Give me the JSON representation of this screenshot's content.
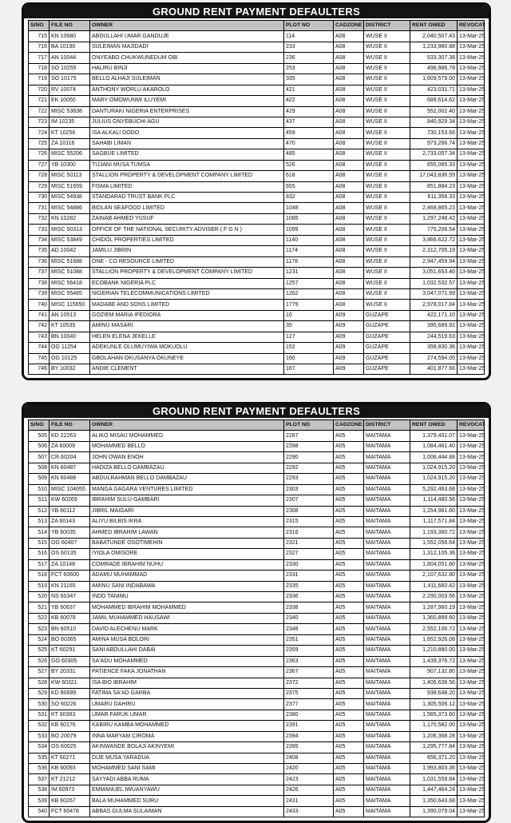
{
  "page": {
    "background": "#f1f1ef",
    "title_bar_color": "#141414",
    "title_text_color": "#ffffff",
    "header_row_color": "#c2c2c2",
    "grid_border_color": "#000000"
  },
  "tables": [
    {
      "title": "GROUND RENT PAYMENT DEFAULTERS",
      "columns": [
        "S/NO",
        "FILE NO",
        "OWNER",
        "PLOT NO",
        "CADZONE",
        "DISTRICT",
        "RENT OWED",
        "REVOCATION DATE"
      ],
      "rows": [
        [
          "715",
          "KN 10680",
          "ABDULLAHI UMAR GANDUJE",
          "114",
          "A08",
          "WUSE II",
          "2,040,507.43",
          "13-Mar-25"
        ],
        [
          "716",
          "BA 10190",
          "SULEIMAN  MAJIDADI",
          "233",
          "A08",
          "WUSE II",
          "1,233,980.88",
          "13-Mar-25"
        ],
        [
          "717",
          "AN 10044",
          "ONYEABO CHUKWUNEDUM OBI",
          "236",
          "A08",
          "WUSE II",
          "533,307.38",
          "13-Mar-25"
        ],
        [
          "718",
          "SO 10255",
          "HALIRU  BINJI",
          "253",
          "A08",
          "WUSE II",
          "496,986.78",
          "13-Mar-25"
        ],
        [
          "719",
          "SO 10175",
          "BELLO ALHAJI SULEIMAN",
          "335",
          "A08",
          "WUSE II",
          "1,609,579.00",
          "13-Mar-25"
        ],
        [
          "720",
          "RV 10074",
          "ANTHONY WORLU AKAROLO",
          "421",
          "A08",
          "WUSE II",
          "423,031.71",
          "13-Mar-25"
        ],
        [
          "721",
          "EK 10050",
          "MARY OMOWUNMI ILUYEMI",
          "422",
          "A08",
          "WUSE II",
          "689,614.62",
          "13-Mar-25"
        ],
        [
          "722",
          "MISC 53638",
          "DANTURAKI NIGERIA ENTERPRISES",
          "429",
          "A08",
          "WUSE II",
          "552,002.40",
          "13-Mar-25"
        ],
        [
          "723",
          "IM 10235",
          "JULIUS ONYEBUCHI AGU",
          "437",
          "A08",
          "WUSE II",
          "840,929.34",
          "13-Mar-25"
        ],
        [
          "724",
          "KT 10256",
          "ISA ALKALI DODO",
          "459",
          "A08",
          "WUSE II",
          "730,153.66",
          "13-Mar-25"
        ],
        [
          "725",
          "ZA 10116",
          "SAHABI  LIMAN",
          "470",
          "A08",
          "WUSE II",
          "973,266.74",
          "13-Mar-25"
        ],
        [
          "726",
          "MISC 55206",
          "SAGBUE LIMITED",
          "485",
          "A08",
          "WUSE II",
          "2,733,057.34",
          "13-Mar-25"
        ],
        [
          "727",
          "YB 10300",
          "TIJJANI MUSA TUMSA",
          "526",
          "A08",
          "WUSE II",
          "655,065.33",
          "13-Mar-25"
        ],
        [
          "728",
          "MISC 50113",
          "STALLION PROPERTY & DEVELOPMENT COMPANY LIMITED",
          "618",
          "A08",
          "WUSE II",
          "17,043,836.59",
          "13-Mar-25"
        ],
        [
          "729",
          "MISC 51659",
          "FISMA LIMITED",
          "655",
          "A08",
          "WUSE II",
          "851,884.23",
          "13-Mar-25"
        ],
        [
          "730",
          "MISC 54938",
          "STANDARAD TRUST BANK PLC",
          "832",
          "A08",
          "WUSE II",
          "611,358.33",
          "13-Mar-25"
        ],
        [
          "731",
          "MISC 54886",
          "BIDLAN SEAFOOD LIMITED",
          "1048",
          "A08",
          "WUSE II",
          "2,468,865.23",
          "13-Mar-25"
        ],
        [
          "732",
          "KN 10282",
          "ZAINAB AHMED YUSUF",
          "1085",
          "A08",
          "WUSE II",
          "1,297,248.42",
          "13-Mar-25"
        ],
        [
          "733",
          "MISC 50313",
          "OFFICE OF THE NATIONAL SECURITY ADVISER ( F G N )",
          "1099",
          "A08",
          "WUSE II",
          "775,206.54",
          "13-Mar-25"
        ],
        [
          "734",
          "MISC 53849",
          "CHIDOL PROPERTIES LIMITED",
          "1140",
          "A08",
          "WUSE II",
          "3,866,622.72",
          "13-Mar-25"
        ],
        [
          "735",
          "AD 10042",
          "JAMILU  JIBRIN",
          "1174",
          "A08",
          "WUSE II",
          "2,312,705.19",
          "13-Mar-25"
        ],
        [
          "736",
          "MISC 51688",
          "ONE - CO RESOURCE LIMITED",
          "1178",
          "A08",
          "WUSE II",
          "2,947,459.94",
          "13-Mar-25"
        ],
        [
          "737",
          "MISC 51088",
          "STALLION PROPERTY & DEVELOPMENT COMPANY LIMITED",
          "1231",
          "A08",
          "WUSE II",
          "3,051,653.40",
          "13-Mar-25"
        ],
        [
          "738",
          "MISC 56418",
          "ECOBANK NIGERIA PLC",
          "1257",
          "A08",
          "WUSE II",
          "1,032,532.57",
          "13-Mar-25"
        ],
        [
          "739",
          "MISC 55465",
          "NIGERIAN TELECOMMUNICATIONS LIMITED",
          "1262",
          "A08",
          "WUSE II",
          "3,047,071.99",
          "13-Mar-25"
        ],
        [
          "740",
          "MISC 115650",
          "MADABE AND SONS LIMITED",
          "1779",
          "A08",
          "WUSE II",
          "2,978,017.84",
          "13-Mar-25"
        ],
        [
          "741",
          "AN 10513",
          "GOZIEM MARIA IFEDIORA",
          "10",
          "A09",
          "GUZAPE",
          "422,171.10",
          "13-Mar-25"
        ],
        [
          "742",
          "KT 10535",
          "AMINU  MASARI",
          "35",
          "A09",
          "GUZAPE",
          "395,689.92",
          "13-Mar-25"
        ],
        [
          "743",
          "BN 10040",
          "HELEN ELENA JEKELLE",
          "127",
          "A09",
          "GUZAPE",
          "244,519.63",
          "13-Mar-25"
        ],
        [
          "744",
          "OG 11254",
          "ADEKUNLE OLUMUYIWA MOKUOLU",
          "152",
          "A09",
          "GUZAPE",
          "358,830.36",
          "13-Mar-25"
        ],
        [
          "745",
          "OG 10125",
          "GBOLAHAN OKUSANYA OKUNEYE",
          "160",
          "A09",
          "GUZAPE",
          "274,594.05",
          "13-Mar-25"
        ],
        [
          "746",
          "BY 10032",
          "ANDIE  CLEMENT",
          "167",
          "A09",
          "GUZAPE",
          "401,877.66",
          "13-Mar-25"
        ]
      ]
    },
    {
      "title": "GROUND RENT PAYMENT DEFAULTERS",
      "columns": [
        "S/NO",
        "FILE NO",
        "OWNER",
        "PLOT NO",
        "CADZONE",
        "DISTRICT",
        "RENT OWED",
        "REVOCATION DATE"
      ],
      "rows": [
        [
          "505",
          "KD 22263",
          "ALIKO MISAU MOHAMMED",
          "2287",
          "A05",
          "MAITAMA",
          "1,379,431.07",
          "13-Mar-25"
        ],
        [
          "506",
          "ZA 60009",
          "MOHAMMED  BELLO",
          "2288",
          "A05",
          "MAITAMA",
          "1,084,461.40",
          "13-Mar-25"
        ],
        [
          "507",
          "CR 60204",
          "JOHN OWAN ENOH",
          "2290",
          "A05",
          "MAITAMA",
          "1,006,444.88",
          "13-Mar-25"
        ],
        [
          "508",
          "KN 60487",
          "HADIZA BELLO DAMBAZAU",
          "2292",
          "A05",
          "MAITAMA",
          "1,024,915.20",
          "13-Mar-25"
        ],
        [
          "509",
          "KN 60488",
          "ABDULRAHMAN BELLO DAMBAZAU",
          "2293",
          "A05",
          "MAITAMA",
          "1,024,915.20",
          "13-Mar-25"
        ],
        [
          "510",
          "MISC 104055",
          "MANGA GAGARA VENTURES LIMITED",
          "2303",
          "A05",
          "MAITAMA",
          "5,292,463.68",
          "13-Mar-25"
        ],
        [
          "511",
          "KW 60269",
          "IBRAHIM  SULU-GAMBARI",
          "2307",
          "A05",
          "MAITAMA",
          "1,114,480.56",
          "13-Mar-25"
        ],
        [
          "512",
          "YB 60112",
          "JIBRIL  MAIGARI",
          "2308",
          "A05",
          "MAITAMA",
          "1,254,981.60",
          "13-Mar-25"
        ],
        [
          "513",
          "ZA 60143",
          "ALIYU BILBIS IKRA",
          "2315",
          "A05",
          "MAITAMA",
          "1,117,571.84",
          "13-Mar-25"
        ],
        [
          "514",
          "YB 60035",
          "AHMED IBRAHIM LAWAN",
          "2316",
          "A05",
          "MAITAMA",
          "1,193,360.72",
          "13-Mar-25"
        ],
        [
          "515",
          "OG 60407",
          "BABATUNDE  OSOTIMEHIN",
          "2321",
          "A05",
          "MAITAMA",
          "1,552,056.64",
          "13-Mar-25"
        ],
        [
          "516",
          "OS 60135",
          "IYIOLA  OMISORE",
          "2327",
          "A05",
          "MAITAMA",
          "1,312,105.36",
          "13-Mar-25"
        ],
        [
          "517",
          "ZA 10148",
          "COMRADE IBRAHIM NUHU",
          "2330",
          "A05",
          "MAITAMA",
          "1,804,051.60",
          "13-Mar-25"
        ],
        [
          "518",
          "FCT 60600",
          "ADAMU  MUHAMMAD",
          "2331",
          "A05",
          "MAITAMA",
          "2,107,632.80",
          "13-Mar-25"
        ],
        [
          "519",
          "KN 21165",
          "AMINU SANI INDABAWA",
          "2335",
          "A05",
          "MAITAMA",
          "1,411,660.42",
          "13-Mar-25"
        ],
        [
          "520",
          "NS 60347",
          "INDO  TANIMU",
          "2336",
          "A05",
          "MAITAMA",
          "2,290,003.56",
          "13-Mar-25"
        ],
        [
          "521",
          "YB 60637",
          "MOHAMMED IBRAHIM MOHAMMED",
          "2338",
          "A05",
          "MAITAMA",
          "1,287,960.19",
          "13-Mar-25"
        ],
        [
          "522",
          "KB 60078",
          "JAMIL MUHAMMED HAUSAWI",
          "2340",
          "A05",
          "MAITAMA",
          "1,360,899.60",
          "13-Mar-25"
        ],
        [
          "523",
          "BN 60510",
          "DAVID ALECHENU MARK",
          "2348",
          "A05",
          "MAITAMA",
          "2,552,106.72",
          "13-Mar-25"
        ],
        [
          "524",
          "BO 60365",
          "AMINA MUSA BOLORI",
          "2351",
          "A05",
          "MAITAMA",
          "1,652,926.08",
          "13-Mar-25"
        ],
        [
          "525",
          "KT 60291",
          "SANI ABDULLAHI DABAI",
          "2359",
          "A05",
          "MAITAMA",
          "1,210,880.00",
          "13-Mar-25"
        ],
        [
          "526",
          "GO 60305",
          "SA'ADU  MOHAMMED",
          "2363",
          "A05",
          "MAITAMA",
          "1,439,376.72",
          "13-Mar-25"
        ],
        [
          "527",
          "BY 20331",
          "PATIENCE FAKA JONATHAN",
          "2367",
          "A05",
          "MAITAMA",
          "907,132.80",
          "13-Mar-25"
        ],
        [
          "528",
          "KW 60321",
          "ISA BIO IBRAHIM",
          "2372",
          "A05",
          "MAITAMA",
          "1,406,638.56",
          "13-Mar-25"
        ],
        [
          "529",
          "KD 60689",
          "FATIMA SA'AD GARBA",
          "2375",
          "A05",
          "MAITAMA",
          "938,648.20",
          "13-Mar-25"
        ],
        [
          "530",
          "SO 60226",
          "UMARU  DAHIRU",
          "2377",
          "A05",
          "MAITAMA",
          "1,305,506.12",
          "13-Mar-25"
        ],
        [
          "531",
          "KT 60383",
          "UMAR FARUK UMAR",
          "2380",
          "A05",
          "MAITAMA",
          "1,565,373.60",
          "13-Mar-25"
        ],
        [
          "532",
          "KB 60176",
          "KABIRU KAMBA MOHAMMED",
          "2391",
          "A05",
          "MAITAMA",
          "1,170,582.00",
          "13-Mar-25"
        ],
        [
          "533",
          "BO 20079",
          "INNA MARYAM CIROMA",
          "2394",
          "A05",
          "MAITAMA",
          "1,206,368.28",
          "13-Mar-25"
        ],
        [
          "534",
          "OS 60025",
          "AKINWANDE BOLAJI AKINYEMI",
          "2395",
          "A05",
          "MAITAMA",
          "1,295,777.84",
          "13-Mar-25"
        ],
        [
          "535",
          "KT 60271",
          "DIJE MUSA YARADUA",
          "2408",
          "A05",
          "MAITAMA",
          "656,371.20",
          "13-Mar-25"
        ],
        [
          "536",
          "KB 60093",
          "MOHAMMED SANI SAMI",
          "2420",
          "A05",
          "MAITAMA",
          "1,993,803.36",
          "13-Mar-25"
        ],
        [
          "537",
          "KT 21212",
          "SAYYADI ABBA RUMA",
          "2423",
          "A05",
          "MAITAMA",
          "1,031,559.84",
          "13-Mar-25"
        ],
        [
          "538",
          "IM 60973",
          "EMMANUEL  IWUANYAWU",
          "2426",
          "A05",
          "MAITAMA",
          "1,447,464.24",
          "13-Mar-25"
        ],
        [
          "539",
          "KB 60267",
          "BALA MUHAMMED SURU",
          "2431",
          "A05",
          "MAITAMA",
          "1,350,643.68",
          "13-Mar-25"
        ],
        [
          "540",
          "FCT 60478",
          "ABBAS GULMA SULAIMAN",
          "2433",
          "A05",
          "MAITAMA",
          "1,390,079.04",
          "13-Mar-25"
        ]
      ]
    }
  ]
}
